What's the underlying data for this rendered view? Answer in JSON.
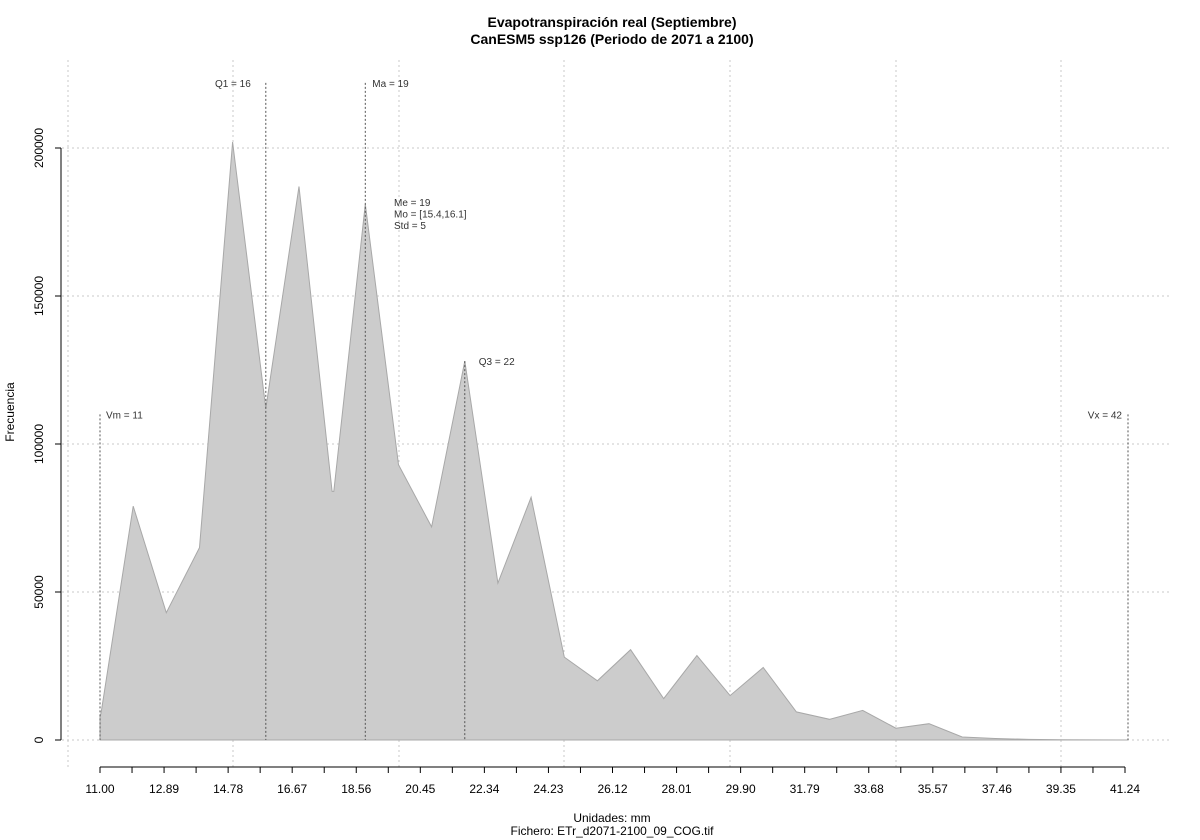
{
  "chart_data": {
    "type": "area",
    "title": "Evapotranspiración real (Septiembre)",
    "subtitle": "CanESM5 ssp126 (Periodo de 2071 a 2100)",
    "xlabel": "Unidades: mm",
    "ylabel": "Frecuencia",
    "footer": "Fichero: ETr_d2071-2100_09_COG.tif",
    "xlim": [
      11.0,
      42.0
    ],
    "ylim": [
      0,
      200000
    ],
    "x_tick_labels": [
      "11.00",
      "12.89",
      "14.78",
      "16.67",
      "18.56",
      "20.45",
      "22.34",
      "24.23",
      "26.12",
      "28.01",
      "29.90",
      "31.79",
      "33.68",
      "35.57",
      "37.46",
      "39.35",
      "41.24"
    ],
    "y_tick_labels": [
      "0",
      "50000",
      "100000",
      "150000",
      "200000"
    ],
    "y_ticks": [
      0,
      50000,
      100000,
      150000,
      200000
    ],
    "grid": true,
    "series": [
      {
        "x": [
          11.0,
          11.03,
          12.0,
          13.0,
          14.0,
          15.0,
          16.0,
          17.0,
          18.0,
          18.05,
          19.0,
          20.0,
          21.0,
          22.0,
          23.0,
          24.0,
          25.0,
          26.0,
          27.0,
          28.0,
          29.0,
          30.0,
          31.0,
          32.0,
          33.0,
          34.0,
          35.0,
          36.0,
          37.0,
          38.0,
          39.0,
          40.0,
          41.0,
          42.0
        ],
        "y": [
          8000,
          9000,
          79000,
          43000,
          65000,
          202000,
          112000,
          187000,
          84000,
          84000,
          181000,
          93000,
          72000,
          128000,
          53000,
          82000,
          28000,
          20000,
          30500,
          14000,
          28500,
          15000,
          24500,
          9500,
          7000,
          10000,
          4000,
          5500,
          1000,
          500,
          200,
          100,
          50,
          0
        ]
      }
    ],
    "annotations": {
      "vm": {
        "label": "Vm = 11",
        "x": 11.0,
        "y_top": 110000
      },
      "q1": {
        "label": "Q1 = 16",
        "x": 16.0,
        "y_top": 222000
      },
      "ma": {
        "label": "Ma = 19",
        "x": 19.0,
        "y_top": 222000
      },
      "q3": {
        "label": "Q3 = 22",
        "x": 22.0,
        "y_top": 128000
      },
      "vx": {
        "label": "Vx = 42",
        "x": 42.0,
        "y_top": 110000
      },
      "stats": [
        "Me = 19",
        "Mo = [15.4,16.1]",
        "Std = 5"
      ]
    }
  }
}
